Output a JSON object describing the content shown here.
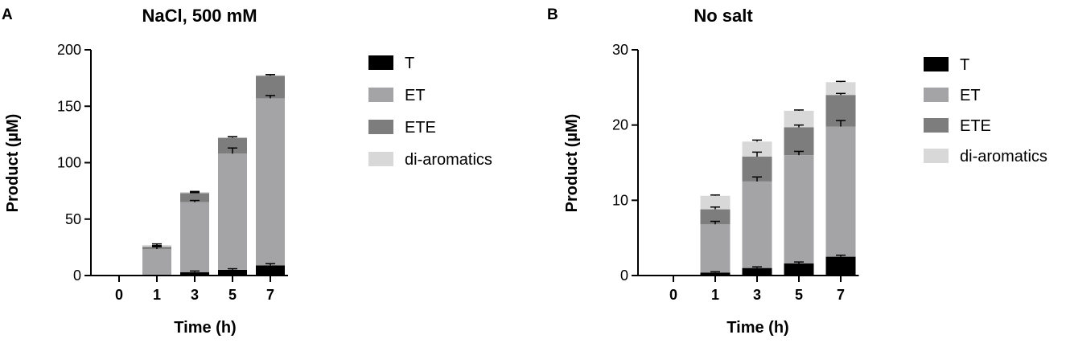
{
  "panels": [
    {
      "letter": "A",
      "chart_data": {
        "type": "bar",
        "stacked": true,
        "title": "NaCl, 500 mM",
        "xlabel": "Time (h)",
        "ylabel": "Product (µM)",
        "categories": [
          "0",
          "1",
          "3",
          "5",
          "7"
        ],
        "ylim": [
          0,
          200
        ],
        "yticks": [
          0,
          50,
          100,
          150,
          200
        ],
        "grid": false,
        "legend_position": "right",
        "series": [
          {
            "name": "T",
            "color": "#000000",
            "values": [
              0,
              0.5,
              3,
              5,
              9
            ],
            "errors": [
              0,
              0,
              1,
              1,
              1.5
            ]
          },
          {
            "name": "ET",
            "color": "#a4a4a6",
            "values": [
              0,
              23,
              62,
              103,
              148
            ],
            "errors": [
              0,
              2,
              1.5,
              5,
              2.5
            ]
          },
          {
            "name": "ETE",
            "color": "#7d7d7d",
            "values": [
              0,
              2,
              8,
              14,
              20
            ],
            "errors": [
              0,
              1,
              0.5,
              1,
              1
            ]
          },
          {
            "name": "di-aromatics",
            "color": "#d8d8d8",
            "values": [
              0,
              1.5,
              1,
              0.5,
              0.5
            ],
            "errors": [
              0,
              1,
              0.5,
              0.5,
              0.5
            ]
          }
        ]
      }
    },
    {
      "letter": "B",
      "chart_data": {
        "type": "bar",
        "stacked": true,
        "title": "No salt",
        "xlabel": "Time (h)",
        "ylabel": "Product (µM)",
        "categories": [
          "0",
          "1",
          "3",
          "5",
          "7"
        ],
        "ylim": [
          0,
          30
        ],
        "yticks": [
          0,
          10,
          20,
          30
        ],
        "grid": false,
        "legend_position": "right",
        "series": [
          {
            "name": "T",
            "color": "#000000",
            "values": [
              0,
              0.4,
              1.0,
              1.6,
              2.5
            ],
            "errors": [
              0,
              0.1,
              0.15,
              0.2,
              0.2
            ]
          },
          {
            "name": "ET",
            "color": "#a4a4a6",
            "values": [
              0,
              6.4,
              11.5,
              14.4,
              17.3
            ],
            "errors": [
              0,
              0.4,
              0.6,
              0.5,
              0.8
            ]
          },
          {
            "name": "ETE",
            "color": "#7d7d7d",
            "values": [
              0,
              2.0,
              3.3,
              3.7,
              4.2
            ],
            "errors": [
              0,
              0.3,
              0.6,
              0.3,
              0.2
            ]
          },
          {
            "name": "di-aromatics",
            "color": "#d8d8d8",
            "values": [
              0,
              1.8,
              2.0,
              2.2,
              1.7
            ],
            "errors": [
              0,
              0.1,
              0.2,
              0.1,
              0.1
            ]
          }
        ]
      }
    }
  ]
}
